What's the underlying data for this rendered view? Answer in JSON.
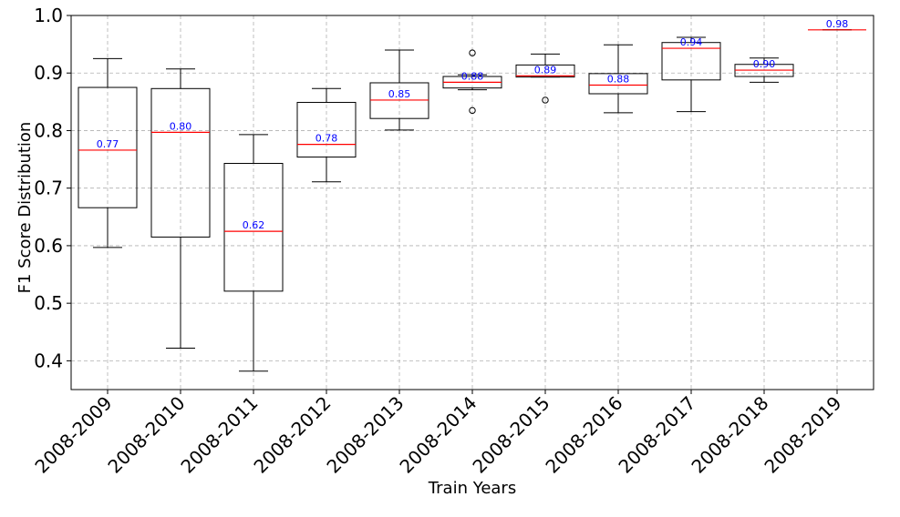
{
  "chart_data": {
    "type": "box",
    "title": "",
    "xlabel": "Train Years",
    "ylabel": "F1 Score Distribution",
    "ylim": [
      0.35,
      1.0
    ],
    "yticks": [
      0.4,
      0.5,
      0.6,
      0.7,
      0.8,
      0.9,
      1.0
    ],
    "ytick_labels": [
      "0.4",
      "0.5",
      "0.6",
      "0.7",
      "0.8",
      "0.9",
      "1.0"
    ],
    "grid": true,
    "colors": {
      "box": "#000000",
      "median": "#ff0000",
      "median_label": "#0000ff",
      "grid": "#b0b0b0"
    },
    "categories": [
      "2008-2009",
      "2008-2010",
      "2008-2011",
      "2008-2012",
      "2008-2013",
      "2008-2014",
      "2008-2015",
      "2008-2016",
      "2008-2017",
      "2008-2018",
      "2008-2019"
    ],
    "boxes": [
      {
        "whislo": 0.597,
        "q1": 0.666,
        "med": 0.766,
        "q3": 0.875,
        "whishi": 0.925,
        "fliers": [],
        "label": "0.77"
      },
      {
        "whislo": 0.422,
        "q1": 0.615,
        "med": 0.797,
        "q3": 0.873,
        "whishi": 0.907,
        "fliers": [],
        "label": "0.80"
      },
      {
        "whislo": 0.382,
        "q1": 0.521,
        "med": 0.625,
        "q3": 0.743,
        "whishi": 0.793,
        "fliers": [],
        "label": "0.62"
      },
      {
        "whislo": 0.711,
        "q1": 0.754,
        "med": 0.776,
        "q3": 0.849,
        "whishi": 0.873,
        "fliers": [],
        "label": "0.78"
      },
      {
        "whislo": 0.801,
        "q1": 0.821,
        "med": 0.853,
        "q3": 0.883,
        "whishi": 0.94,
        "fliers": [],
        "label": "0.85"
      },
      {
        "whislo": 0.871,
        "q1": 0.874,
        "med": 0.884,
        "q3": 0.894,
        "whishi": 0.897,
        "fliers": [
          0.835,
          0.935
        ],
        "label": "0.88"
      },
      {
        "whislo": 0.893,
        "q1": 0.893,
        "med": 0.895,
        "q3": 0.914,
        "whishi": 0.933,
        "fliers": [
          0.853
        ],
        "label": "0.89"
      },
      {
        "whislo": 0.831,
        "q1": 0.864,
        "med": 0.879,
        "q3": 0.899,
        "whishi": 0.949,
        "fliers": [],
        "label": "0.88"
      },
      {
        "whislo": 0.833,
        "q1": 0.888,
        "med": 0.943,
        "q3": 0.953,
        "whishi": 0.962,
        "fliers": [],
        "label": "0.94"
      },
      {
        "whislo": 0.884,
        "q1": 0.894,
        "med": 0.905,
        "q3": 0.915,
        "whishi": 0.926,
        "fliers": [],
        "label": "0.90"
      },
      {
        "whislo": 0.975,
        "q1": 0.975,
        "med": 0.975,
        "q3": 0.975,
        "whishi": 0.975,
        "fliers": [],
        "label": "0.98"
      }
    ]
  }
}
